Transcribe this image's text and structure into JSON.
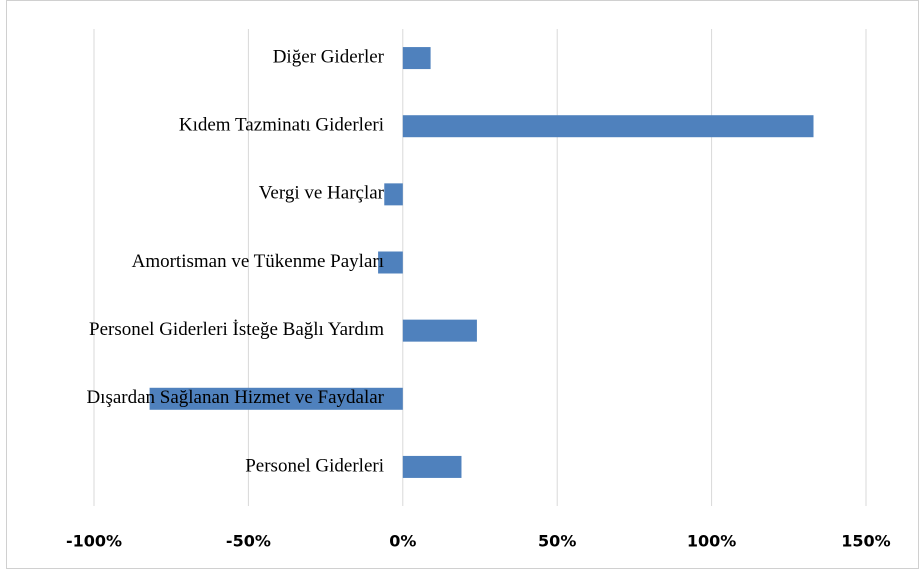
{
  "chart_data": {
    "type": "hbar",
    "categories": [
      "Diğer Giderler",
      "Kıdem Tazminatı Giderleri",
      "Vergi ve Harçlar",
      "Amortisman ve Tükenme Payları",
      "Personel Giderleri İsteğe Bağlı Yardım",
      "Dışardan Sağlanan Hizmet ve Faydalar",
      "Personel Giderleri"
    ],
    "values": [
      9,
      133,
      -6,
      -8,
      24,
      -82,
      19
    ],
    "color": "#4f81bd",
    "xlim": [
      -100,
      150
    ],
    "xticks": [
      {
        "value": -100,
        "label": "-100%"
      },
      {
        "value": -50,
        "label": "-50%"
      },
      {
        "value": 0,
        "label": "0%"
      },
      {
        "value": 50,
        "label": "50%"
      },
      {
        "value": 100,
        "label": "100%"
      },
      {
        "value": 150,
        "label": "150%"
      }
    ],
    "grid": true
  }
}
